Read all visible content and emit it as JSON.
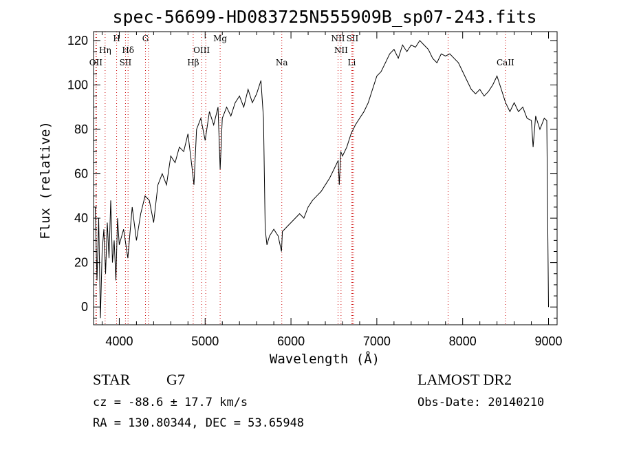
{
  "chart_data": {
    "type": "line",
    "title": "spec-56699-HD083725N555909B_sp07-243.fits",
    "xlabel": "Wavelength (Å)",
    "ylabel": "Flux (relative)",
    "xlim": [
      3700,
      9100
    ],
    "ylim": [
      -8,
      124
    ],
    "xticks": [
      4000,
      5000,
      6000,
      7000,
      8000,
      9000
    ],
    "yticks": [
      0,
      20,
      40,
      60,
      80,
      100,
      120
    ],
    "grid": false,
    "line_color": "#000000",
    "marker_color": "#cc0000",
    "series": [
      {
        "x": [
          3720,
          3740,
          3760,
          3780,
          3800,
          3820,
          3840,
          3860,
          3880,
          3900,
          3920,
          3940,
          3960,
          3980,
          4000,
          4050,
          4100,
          4150,
          4200,
          4250,
          4300,
          4350,
          4400,
          4450,
          4500,
          4550,
          4600,
          4650,
          4700,
          4750,
          4800,
          4850,
          4870,
          4900,
          4950,
          5000,
          5050,
          5100,
          5150,
          5175,
          5200,
          5250,
          5300,
          5350,
          5400,
          5450,
          5500,
          5550,
          5600,
          5650,
          5680,
          5700,
          5720,
          5750,
          5800,
          5850,
          5890,
          5900,
          5950,
          6000,
          6050,
          6100,
          6150,
          6200,
          6250,
          6300,
          6350,
          6400,
          6450,
          6500,
          6550,
          6563,
          6580,
          6600,
          6650,
          6700,
          6750,
          6800,
          6850,
          6900,
          6950,
          7000,
          7050,
          7100,
          7150,
          7200,
          7250,
          7300,
          7350,
          7400,
          7450,
          7500,
          7550,
          7600,
          7650,
          7700,
          7750,
          7800,
          7850,
          7900,
          7950,
          8000,
          8050,
          8100,
          8150,
          8200,
          8250,
          8300,
          8350,
          8400,
          8450,
          8500,
          8550,
          8600,
          8650,
          8700,
          8750,
          8800,
          8820,
          8850,
          8900,
          8950,
          8980,
          8990,
          9000
        ],
        "y": [
          45,
          12,
          40,
          -5,
          25,
          35,
          15,
          38,
          22,
          48,
          20,
          30,
          12,
          40,
          28,
          35,
          22,
          45,
          30,
          42,
          50,
          48,
          38,
          55,
          60,
          55,
          68,
          65,
          72,
          70,
          78,
          62,
          55,
          80,
          85,
          75,
          88,
          82,
          90,
          62,
          85,
          90,
          86,
          92,
          95,
          90,
          98,
          92,
          96,
          102,
          85,
          35,
          28,
          32,
          35,
          32,
          25,
          34,
          36,
          38,
          40,
          42,
          40,
          45,
          48,
          50,
          52,
          55,
          58,
          62,
          66,
          55,
          70,
          68,
          72,
          78,
          82,
          85,
          88,
          92,
          98,
          104,
          106,
          110,
          114,
          116,
          112,
          118,
          115,
          118,
          117,
          120,
          118,
          116,
          112,
          110,
          114,
          113,
          114,
          112,
          110,
          106,
          102,
          98,
          96,
          98,
          95,
          97,
          100,
          104,
          98,
          92,
          88,
          92,
          88,
          90,
          85,
          84,
          72,
          86,
          80,
          85,
          84,
          40,
          0
        ]
      }
    ],
    "line_markers": [
      {
        "name": "OII",
        "x": 3727,
        "level": 3
      },
      {
        "name": "Hη",
        "x": 3835,
        "level": 2
      },
      {
        "name": "H",
        "x": 3969,
        "level": 1
      },
      {
        "name": "SII",
        "x": 4072,
        "level": 3
      },
      {
        "name": "Hδ",
        "x": 4102,
        "level": 2
      },
      {
        "name": "G",
        "x": 4305,
        "level": 1
      },
      {
        "name": "Hβ",
        "x": 4861,
        "level": 3
      },
      {
        "name": "OIII",
        "x": 4959,
        "level": 2
      },
      {
        "name": "Mg",
        "x": 5175,
        "level": 1
      },
      {
        "name": "Na",
        "x": 5893,
        "level": 3
      },
      {
        "name": "NII",
        "x": 6548,
        "level": 1
      },
      {
        "name": "NII",
        "x": 6583,
        "level": 2
      },
      {
        "name": "SII",
        "x": 6716,
        "level": 1
      },
      {
        "name": "Li",
        "x": 6708,
        "level": 3
      },
      {
        "name": "CaII",
        "x": 8498,
        "level": 3
      }
    ],
    "extra_marker_x": [
      3734,
      4340,
      5007,
      6731,
      7830
    ]
  },
  "info": {
    "object_type": "STAR",
    "subclass": "G7",
    "cz": "cz = -88.6 ± 17.7 km/s",
    "coords": "RA = 130.80344, DEC =  53.65948",
    "survey": "LAMOST DR2",
    "obs_date": "Obs-Date: 20140210"
  }
}
